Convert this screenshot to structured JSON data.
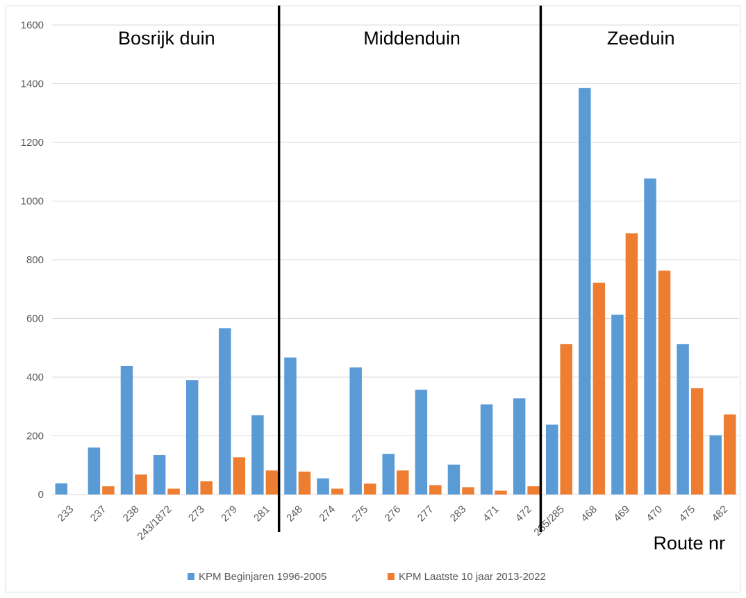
{
  "chart_data": {
    "type": "bar",
    "categories": [
      "233",
      "237",
      "238",
      "243/1872",
      "273",
      "279",
      "281",
      "248",
      "274",
      "275",
      "276",
      "277",
      "283",
      "471",
      "472",
      "235/285",
      "468",
      "469",
      "470",
      "475",
      "482"
    ],
    "series": [
      {
        "name": "KPM Beginjaren 1996-2005",
        "color": "#5b9bd5",
        "values": [
          38,
          160,
          438,
          135,
          390,
          567,
          270,
          467,
          55,
          433,
          138,
          357,
          102,
          307,
          328,
          238,
          1385,
          613,
          1077,
          513,
          202
        ]
      },
      {
        "name": "KPM Laatste 10 jaar 2013-2022",
        "color": "#ed7d31",
        "values": [
          0,
          28,
          68,
          20,
          45,
          127,
          82,
          78,
          20,
          37,
          82,
          32,
          25,
          13,
          28,
          513,
          722,
          890,
          763,
          362,
          273
        ]
      }
    ],
    "ylim": [
      0,
      1600
    ],
    "yticks": [
      0,
      200,
      400,
      600,
      800,
      1000,
      1200,
      1400,
      1600
    ],
    "xlabel": "Route nr",
    "regions": [
      {
        "label": "Bosrijk duin",
        "start": 0
      },
      {
        "label": "Middenduin",
        "start": 7
      },
      {
        "label": "Zeeduin",
        "start": 15
      }
    ],
    "grid": true,
    "legend": "bottom"
  }
}
